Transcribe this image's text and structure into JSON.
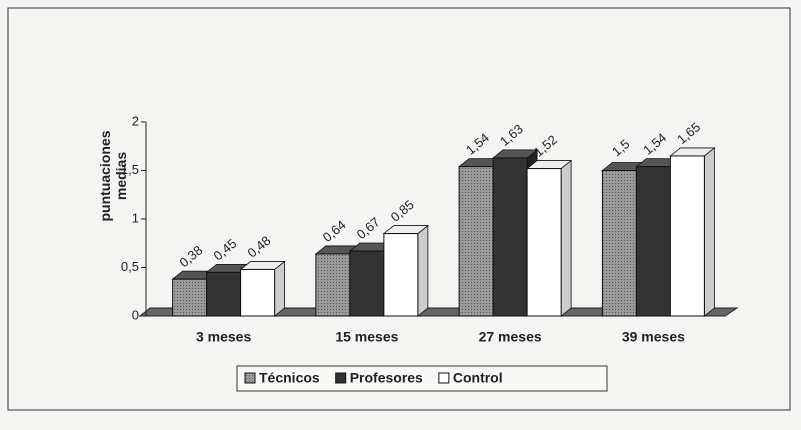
{
  "chart_data": {
    "type": "bar3d",
    "y_label": "puntuaciones medias",
    "categories": [
      "3 meses",
      "15 meses",
      "27 meses",
      "39 meses"
    ],
    "series": [
      {
        "name": "Técnicos",
        "color": "#8a8a8a",
        "values": [
          0.38,
          0.64,
          1.54,
          1.5
        ],
        "value_labels": [
          "0,38",
          "0,64",
          "1,54",
          "1,5"
        ]
      },
      {
        "name": "Profesores",
        "color": "#333333",
        "values": [
          0.45,
          0.67,
          1.63,
          1.54
        ],
        "value_labels": [
          "0,45",
          "0,67",
          "1,63",
          "1,54"
        ]
      },
      {
        "name": "Control",
        "color": "#ffffff",
        "values": [
          0.48,
          0.85,
          1.52,
          1.65
        ],
        "value_labels": [
          "0,48",
          "0,85",
          "1,52",
          "1,65"
        ]
      }
    ],
    "ylim": [
      0,
      2
    ],
    "yticks": [
      0,
      {
        "value": 0.5,
        "label": "0,5"
      },
      1,
      {
        "value": 1.5,
        "label": "1,5"
      },
      2
    ]
  }
}
